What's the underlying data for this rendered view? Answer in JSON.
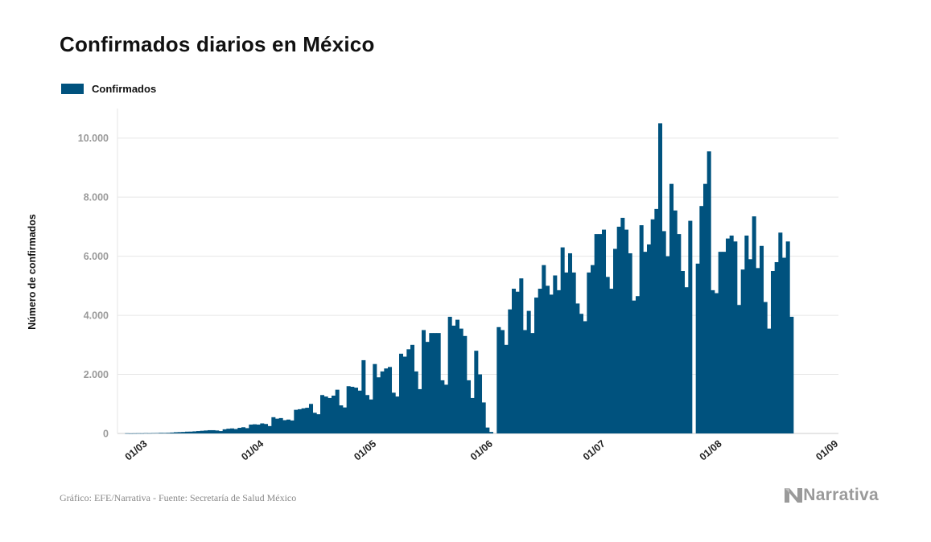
{
  "title": "Confirmados diarios en México",
  "footer": "Gráfico: EFE/Narrativa - Fuente: Secretaría de Salud México",
  "brand": {
    "label": "Narrativa",
    "icon": "narrativa-logo-icon"
  },
  "colors": {
    "bar": "#00527e",
    "grid": "#e6e6e6",
    "axis": "#cccccc"
  },
  "chart_data": {
    "type": "bar",
    "title": "Confirmados diarios en México",
    "ylabel": "Número de confirmados",
    "xlabel": "",
    "legend": {
      "position": "top-left",
      "entries": [
        "Confirmados"
      ]
    },
    "series": [
      {
        "name": "Confirmados"
      }
    ],
    "ylim": [
      0,
      11000
    ],
    "y_ticks": [
      0,
      2000,
      4000,
      6000,
      8000,
      10000
    ],
    "y_tick_labels": [
      "0",
      "2.000",
      "4.000",
      "6.000",
      "8.000",
      "10.000"
    ],
    "grid": true,
    "x_start_date": "2020-02-21",
    "x_ticks": [
      "01/03",
      "01/04",
      "01/05",
      "01/06",
      "01/07",
      "01/08",
      "01/09"
    ],
    "x_tick_dates": [
      "2020-03-01",
      "2020-04-01",
      "2020-05-01",
      "2020-06-01",
      "2020-07-01",
      "2020-08-01",
      "2020-09-01"
    ],
    "values": [
      0,
      0,
      0,
      0,
      5,
      2,
      4,
      6,
      5,
      10,
      8,
      12,
      14,
      20,
      18,
      22,
      30,
      40,
      45,
      50,
      60,
      62,
      70,
      80,
      90,
      100,
      110,
      110,
      100,
      80,
      140,
      160,
      170,
      150,
      190,
      210,
      180,
      300,
      310,
      300,
      340,
      320,
      250,
      550,
      500,
      520,
      450,
      470,
      440,
      800,
      820,
      850,
      870,
      1000,
      700,
      650,
      1300,
      1250,
      1200,
      1280,
      1480,
      950,
      880,
      1600,
      1580,
      1550,
      1450,
      2480,
      1300,
      1150,
      2350,
      1900,
      2100,
      2200,
      2250,
      1380,
      1250,
      2700,
      2600,
      2850,
      3000,
      2100,
      1500,
      3500,
      3100,
      3400,
      3400,
      3400,
      1800,
      1650,
      3950,
      3650,
      3850,
      3550,
      3300,
      1800,
      1200,
      2800,
      2000,
      1050,
      200,
      50,
      0,
      3600,
      3500,
      3000,
      4200,
      4900,
      4800,
      5250,
      3500,
      4150,
      3400,
      4600,
      4900,
      5700,
      5000,
      4700,
      5350,
      4850,
      6300,
      5450,
      6100,
      5450,
      4400,
      4050,
      3800,
      5450,
      5700,
      6750,
      6750,
      6900,
      5300,
      4900,
      6250,
      7000,
      7300,
      6900,
      6100,
      4500,
      4650,
      7050,
      6150,
      6400,
      7250,
      7600,
      10500,
      6850,
      6000,
      8450,
      7550,
      6750,
      5500,
      4950,
      7200,
      0,
      5750,
      7700,
      8450,
      9550,
      4850,
      4750,
      6150,
      6150,
      6600,
      6700,
      6500,
      4350,
      5550,
      6700,
      5900,
      7350,
      5600,
      6350,
      4450,
      3550,
      5500,
      5800,
      6800,
      5950,
      6500,
      3950
    ]
  }
}
